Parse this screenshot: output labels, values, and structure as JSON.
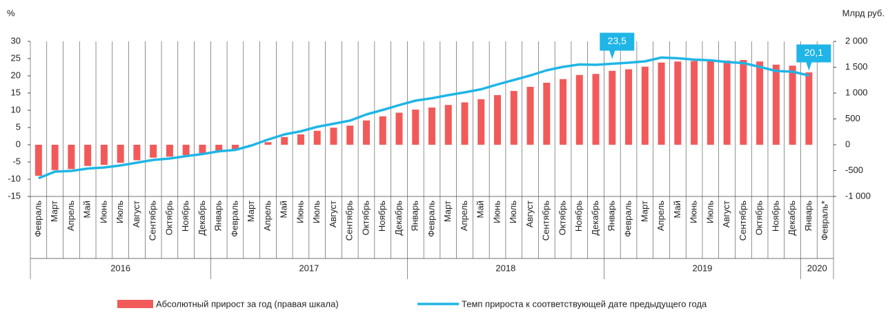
{
  "chart_data": {
    "type": "bar",
    "y_label": "%",
    "y2_label": "Млрд руб.",
    "groups": [
      {
        "name": "2016",
        "categories": [
          "Февраль",
          "Март",
          "Апрель",
          "Май",
          "Июнь",
          "Июль",
          "Август",
          "Сентябрь",
          "Октябрь",
          "Ноябрь",
          "Декабрь"
        ]
      },
      {
        "name": "2017",
        "categories": [
          "Январь",
          "Февраль",
          "Март",
          "Апрель",
          "Май",
          "Июнь",
          "Июль",
          "Август",
          "Сентябрь",
          "Октябрь",
          "Ноябрь",
          "Декабрь"
        ]
      },
      {
        "name": "2018",
        "categories": [
          "Январь",
          "Февраль",
          "Март",
          "Апрель",
          "Май",
          "Июнь",
          "Июль",
          "Август",
          "Сентябрь",
          "Октябрь",
          "Ноябрь",
          "Декабрь"
        ]
      },
      {
        "name": "2019",
        "categories": [
          "Январь",
          "Февраль",
          "Март",
          "Апрель",
          "Май",
          "Июнь",
          "Июль",
          "Август",
          "Сентябрь",
          "Октябрь",
          "Ноябрь",
          "Декабрь"
        ]
      },
      {
        "name": "2020",
        "categories": [
          "Январь",
          "Февраль*"
        ]
      }
    ],
    "series": [
      {
        "name": "Абсолютный прирост за год (правая шкала)",
        "type": "bar",
        "axis": "y2",
        "color": "#f25a5a",
        "values": [
          -600,
          -490,
          -470,
          -410,
          -390,
          -350,
          -300,
          -250,
          -230,
          -200,
          -170,
          -120,
          -100,
          -20,
          50,
          150,
          200,
          270,
          330,
          370,
          470,
          550,
          620,
          680,
          720,
          770,
          820,
          880,
          960,
          1040,
          1120,
          1200,
          1270,
          1350,
          1370,
          1430,
          1460,
          1510,
          1590,
          1610,
          1620,
          1620,
          1630,
          1640,
          1610,
          1550,
          1530,
          1400,
          null
        ]
      },
      {
        "name": "Темп прироста к соответствующей дате предыдущего года",
        "type": "line",
        "color": "#1fb5e6",
        "values": [
          -9.7,
          -7.8,
          -7.6,
          -6.9,
          -6.6,
          -6.0,
          -5.2,
          -4.4,
          -4.0,
          -3.3,
          -2.7,
          -1.9,
          -1.5,
          -0.2,
          1.5,
          3.0,
          3.9,
          5.2,
          6.1,
          7.0,
          8.8,
          10.1,
          11.5,
          12.8,
          13.5,
          14.4,
          15.2,
          16.1,
          17.5,
          18.8,
          20.1,
          21.6,
          22.6,
          23.3,
          23.2,
          23.5,
          23.8,
          24.2,
          25.3,
          25.1,
          24.7,
          24.5,
          24.0,
          23.7,
          22.6,
          21.4,
          21.2,
          20.1,
          null
        ],
        "value_labels": [
          null,
          null,
          null,
          null,
          null,
          null,
          null,
          null,
          null,
          null,
          null,
          null,
          null,
          null,
          null,
          null,
          null,
          null,
          null,
          null,
          null,
          null,
          null,
          null,
          null,
          null,
          null,
          null,
          null,
          null,
          null,
          null,
          null,
          null,
          null,
          "23,5",
          null,
          null,
          null,
          null,
          null,
          null,
          null,
          null,
          null,
          null,
          null,
          "20,1",
          null
        ]
      }
    ],
    "ylim": [
      -15,
      30
    ],
    "yticks": [
      -15,
      -10,
      -5,
      0,
      5,
      10,
      15,
      20,
      25,
      30
    ],
    "y2lim": [
      -1000,
      2000
    ],
    "y2ticks": [
      {
        "value": -1000,
        "label": "-1 000"
      },
      -500,
      0,
      500,
      {
        "value": 1000,
        "label": "1 000"
      },
      {
        "value": 1500,
        "label": "1 500"
      },
      {
        "value": 2000,
        "label": "2 000"
      }
    ],
    "grid": true
  }
}
